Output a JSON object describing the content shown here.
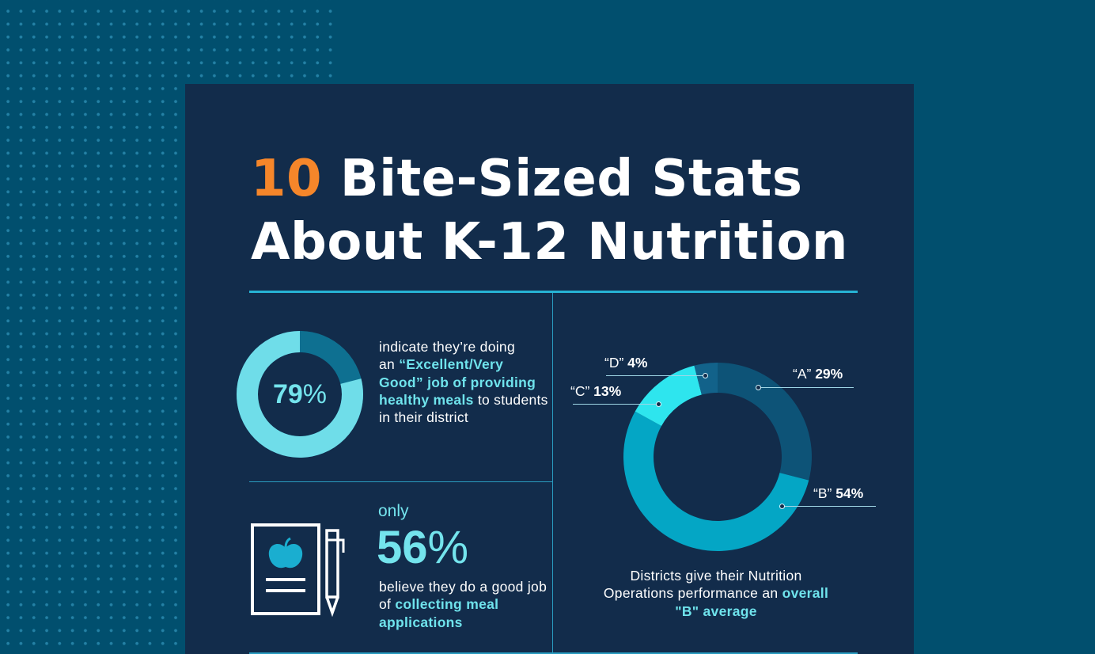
{
  "title": {
    "number": "10",
    "rest_line1": " Bite-Sized Stats",
    "line2": "About K-12 Nutrition"
  },
  "stat1": {
    "value": "79",
    "unit": "%",
    "fraction": 0.79,
    "text_plain1": "indicate they’re doing",
    "text_plain2": "an ",
    "text_bold": "“Excellent/Very Good” job of providing healthy meals",
    "text_plain3": " to students in their district"
  },
  "stat2": {
    "prefix": "only",
    "value": "56",
    "unit": "%",
    "text_plain": "believe they do a good job of ",
    "text_bold": "collecting meal applications"
  },
  "chart_data": {
    "type": "pie",
    "categories": [
      "“A”",
      "“B”",
      "“C”",
      "“D”"
    ],
    "values": [
      29,
      54,
      13,
      4
    ],
    "value_labels": [
      "29%",
      "54%",
      "13%",
      "4%"
    ],
    "colors": [
      "#0d5377",
      "#04a6c5",
      "#2ee5ee",
      "#12628a"
    ],
    "caption_plain": "Districts give their Nutrition Operations performance an ",
    "caption_bold": "overall \"B\" average"
  },
  "colors": {
    "accent_orange": "#f5862a",
    "accent_cyan": "#6fe3ec",
    "card_bg": "#122c4b",
    "page_bg": "#014f6e"
  },
  "icons": [
    "clipboard-apple-icon",
    "pencil-icon"
  ]
}
